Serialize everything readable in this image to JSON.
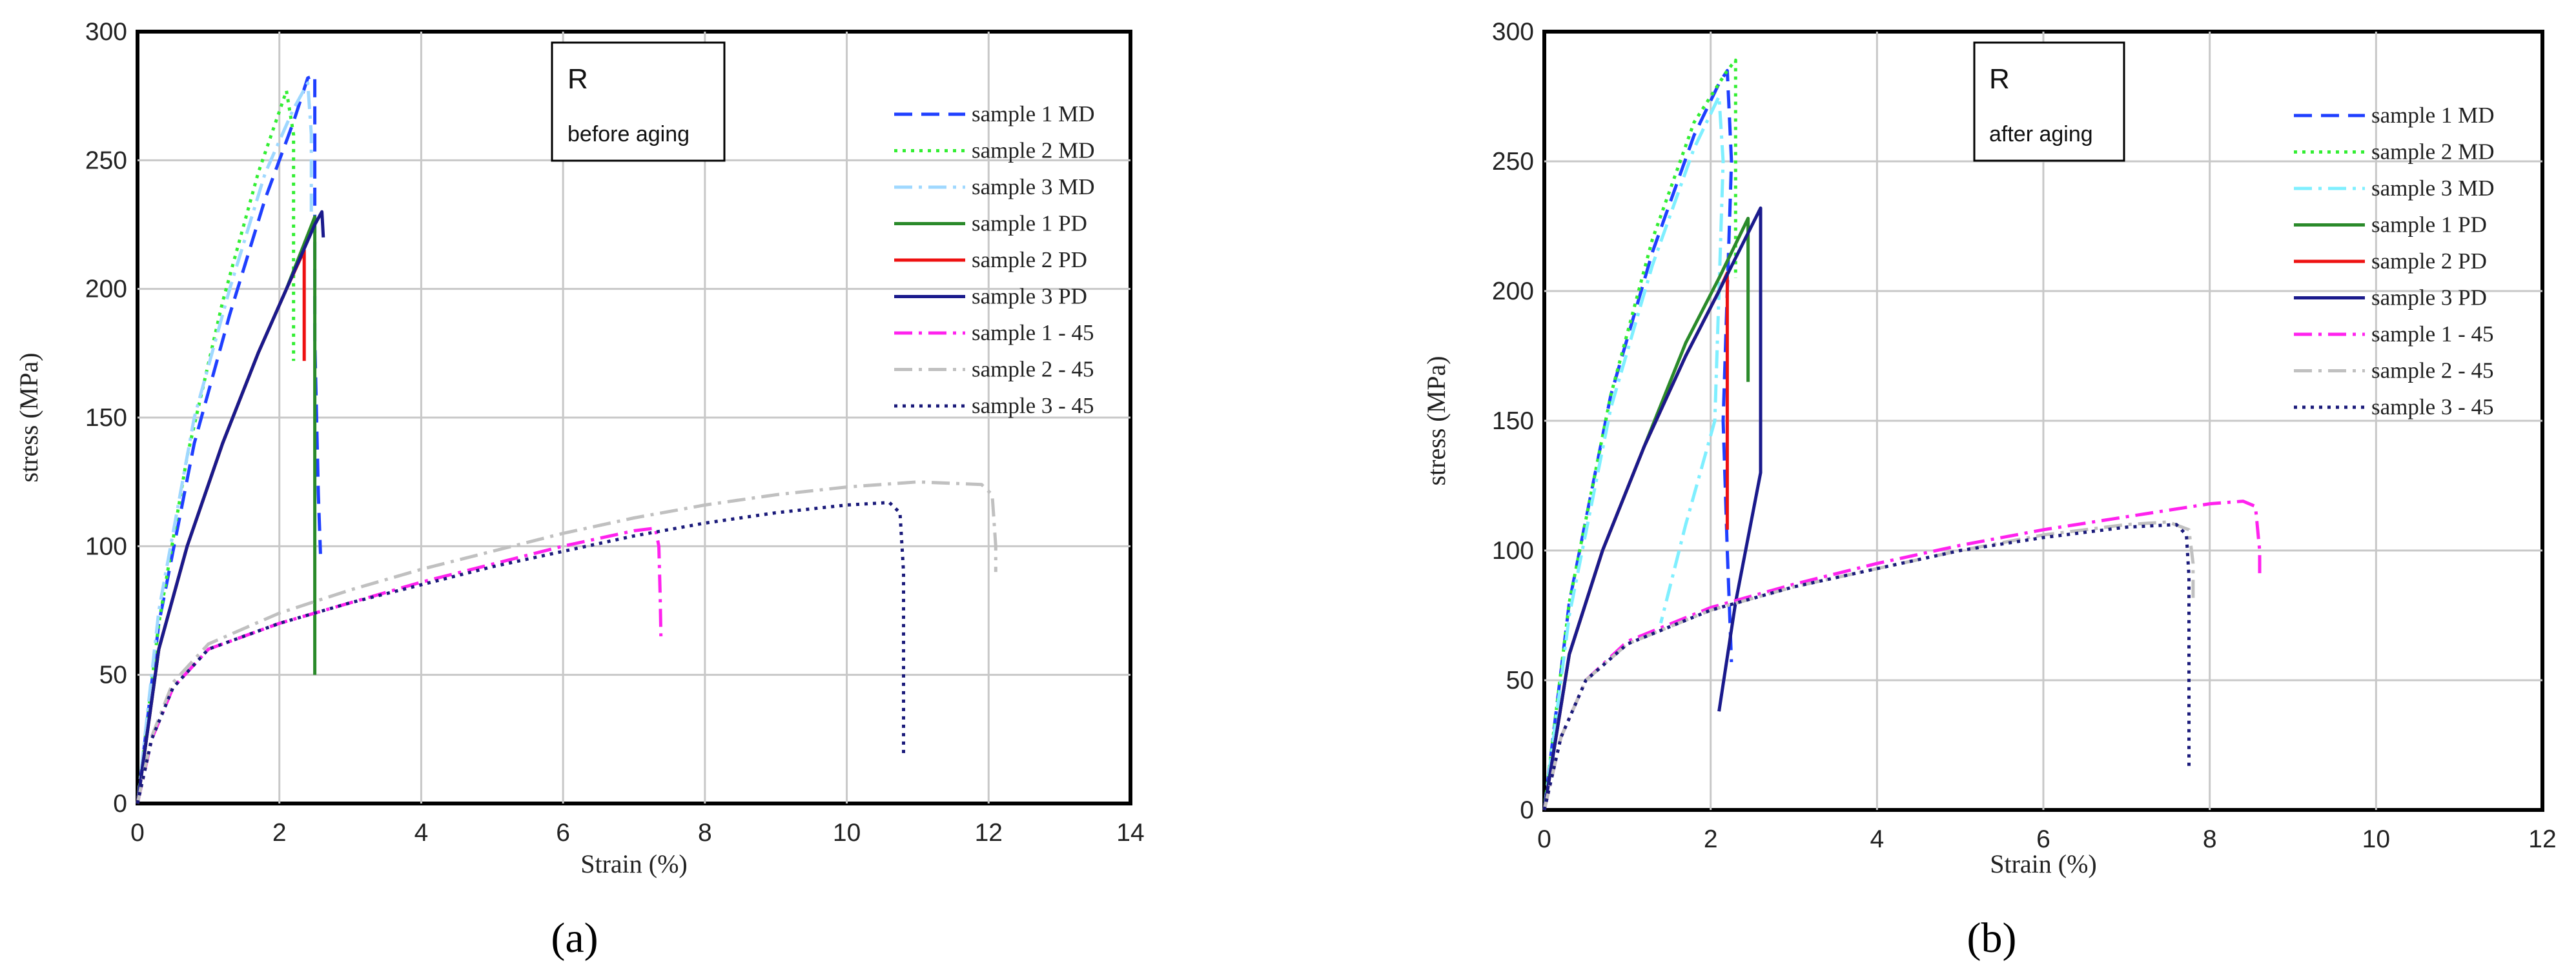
{
  "chart_data": [
    {
      "type": "line",
      "panel_label": "(a)",
      "annotation": {
        "line1": "R",
        "line2": "before aging"
      },
      "xlabel": "Strain (%)",
      "ylabel": "stress (MPa)",
      "xlim": [
        0,
        14
      ],
      "ylim": [
        0,
        300
      ],
      "xticks": [
        "0",
        "2",
        "4",
        "6",
        "8",
        "10",
        "12",
        "14"
      ],
      "yticks": [
        "0",
        "50",
        "100",
        "150",
        "200",
        "250",
        "300"
      ],
      "legend_position": "top-right",
      "series": [
        {
          "name": "sample 1 MD",
          "color": "#1f3fff",
          "dash": "dashed",
          "points": [
            [
              0,
              0
            ],
            [
              0.3,
              70
            ],
            [
              0.8,
              140
            ],
            [
              1.3,
              190
            ],
            [
              1.8,
              235
            ],
            [
              2.2,
              265
            ],
            [
              2.4,
              282
            ],
            [
              2.5,
              283
            ],
            [
              2.5,
              250
            ],
            [
              2.5,
              180
            ],
            [
              2.55,
              120
            ],
            [
              2.58,
              97
            ]
          ]
        },
        {
          "name": "sample 2 MD",
          "color": "#33ee33",
          "dash": "dotted",
          "points": [
            [
              0,
              0
            ],
            [
              0.3,
              70
            ],
            [
              0.7,
              135
            ],
            [
              1.2,
              195
            ],
            [
              1.7,
              245
            ],
            [
              2.1,
              277
            ],
            [
              2.2,
              260
            ],
            [
              2.2,
              210
            ],
            [
              2.2,
              172
            ]
          ]
        },
        {
          "name": "sample 3 MD",
          "color": "#9fd8ff",
          "dash": "dashdot",
          "points": [
            [
              0,
              0
            ],
            [
              0.3,
              75
            ],
            [
              0.8,
              150
            ],
            [
              1.3,
              200
            ],
            [
              1.8,
              245
            ],
            [
              2.2,
              270
            ],
            [
              2.4,
              280
            ],
            [
              2.45,
              260
            ],
            [
              2.45,
              230
            ]
          ]
        },
        {
          "name": "sample 1 PD",
          "color": "#2a8a2a",
          "dash": "solid",
          "points": [
            [
              0,
              0
            ],
            [
              0.3,
              60
            ],
            [
              0.7,
              100
            ],
            [
              1.2,
              140
            ],
            [
              1.7,
              175
            ],
            [
              2.1,
              200
            ],
            [
              2.5,
              228
            ],
            [
              2.5,
              200
            ],
            [
              2.5,
              150
            ],
            [
              2.5,
              100
            ],
            [
              2.5,
              50
            ]
          ]
        },
        {
          "name": "sample 2 PD",
          "color": "#ee1111",
          "dash": "solid",
          "points": [
            [
              0,
              0
            ],
            [
              0.3,
              60
            ],
            [
              0.7,
              100
            ],
            [
              1.2,
              140
            ],
            [
              1.7,
              175
            ],
            [
              2.1,
              200
            ],
            [
              2.35,
              215
            ],
            [
              2.35,
              190
            ],
            [
              2.35,
              172
            ]
          ]
        },
        {
          "name": "sample 3 PD",
          "color": "#1a1a8c",
          "dash": "solid",
          "points": [
            [
              0,
              0
            ],
            [
              0.3,
              60
            ],
            [
              0.7,
              100
            ],
            [
              1.2,
              140
            ],
            [
              1.7,
              175
            ],
            [
              2.1,
              200
            ],
            [
              2.5,
              225
            ],
            [
              2.6,
              230
            ],
            [
              2.62,
              220
            ]
          ]
        },
        {
          "name": "sample 1 - 45",
          "color": "#ff22ee",
          "dash": "dashdot",
          "points": [
            [
              0,
              0
            ],
            [
              0.2,
              25
            ],
            [
              0.5,
              45
            ],
            [
              1,
              60
            ],
            [
              2,
              70
            ],
            [
              3,
              78
            ],
            [
              4,
              86
            ],
            [
              5,
              93
            ],
            [
              6,
              100
            ],
            [
              7,
              106
            ],
            [
              7.3,
              107
            ],
            [
              7.35,
              100
            ],
            [
              7.37,
              80
            ],
            [
              7.38,
              65
            ]
          ]
        },
        {
          "name": "sample 2 - 45",
          "color": "#c0c0c0",
          "dash": "dashdot",
          "points": [
            [
              0,
              0
            ],
            [
              0.2,
              26
            ],
            [
              0.5,
              47
            ],
            [
              1,
              62
            ],
            [
              2,
              74
            ],
            [
              3,
              83
            ],
            [
              4,
              91
            ],
            [
              5,
              98
            ],
            [
              6,
              105
            ],
            [
              7,
              111
            ],
            [
              8,
              116
            ],
            [
              9,
              120
            ],
            [
              10,
              123
            ],
            [
              11,
              125
            ],
            [
              11.9,
              124
            ],
            [
              12.05,
              120
            ],
            [
              12.1,
              100
            ],
            [
              12.1,
              90
            ]
          ]
        },
        {
          "name": "sample 3 - 45",
          "color": "#1a1a7a",
          "dash": "dotted",
          "points": [
            [
              0,
              0
            ],
            [
              0.2,
              25
            ],
            [
              0.5,
              45
            ],
            [
              1,
              60
            ],
            [
              2,
              70
            ],
            [
              3,
              78
            ],
            [
              4,
              85
            ],
            [
              5,
              92
            ],
            [
              6,
              98
            ],
            [
              7,
              104
            ],
            [
              8,
              109
            ],
            [
              9,
              113
            ],
            [
              10,
              116
            ],
            [
              10.6,
              117
            ],
            [
              10.75,
              113
            ],
            [
              10.8,
              90
            ],
            [
              10.8,
              50
            ],
            [
              10.8,
              18
            ]
          ]
        }
      ]
    },
    {
      "type": "line",
      "panel_label": "(b)",
      "annotation": {
        "line1": "R",
        "line2": "after aging"
      },
      "xlabel": "Strain (%)",
      "ylabel": "stress (MPa)",
      "xlim": [
        0,
        12
      ],
      "ylim": [
        0,
        300
      ],
      "xticks": [
        "0",
        "2",
        "4",
        "6",
        "8",
        "10",
        "12"
      ],
      "yticks": [
        "0",
        "50",
        "100",
        "150",
        "200",
        "250",
        "300"
      ],
      "legend_position": "top-right",
      "series": [
        {
          "name": "sample 1 MD",
          "color": "#1f3fff",
          "dash": "dashed",
          "points": [
            [
              0,
              0
            ],
            [
              0.3,
              80
            ],
            [
              0.8,
              160
            ],
            [
              1.3,
              215
            ],
            [
              1.8,
              260
            ],
            [
              2.1,
              280
            ],
            [
              2.2,
              285
            ],
            [
              2.25,
              250
            ],
            [
              2.2,
              200
            ],
            [
              2.15,
              150
            ],
            [
              2.2,
              100
            ],
            [
              2.25,
              57
            ]
          ]
        },
        {
          "name": "sample 2 MD",
          "color": "#33ee33",
          "dash": "dotted",
          "points": [
            [
              0,
              0
            ],
            [
              0.3,
              80
            ],
            [
              0.8,
              160
            ],
            [
              1.3,
              220
            ],
            [
              1.8,
              265
            ],
            [
              2.2,
              285
            ],
            [
              2.3,
              289
            ],
            [
              2.3,
              260
            ],
            [
              2.3,
              230
            ],
            [
              2.3,
              205
            ]
          ]
        },
        {
          "name": "sample 3 MD",
          "color": "#7fefff",
          "dash": "dashdot",
          "points": [
            [
              0,
              0
            ],
            [
              0.3,
              75
            ],
            [
              0.8,
              155
            ],
            [
              1.3,
              210
            ],
            [
              1.8,
              255
            ],
            [
              2.1,
              275
            ],
            [
              2.15,
              250
            ],
            [
              2.1,
              200
            ],
            [
              2.05,
              150
            ],
            [
              1.7,
              110
            ],
            [
              1.4,
              72
            ]
          ]
        },
        {
          "name": "sample 1 PD",
          "color": "#2a8a2a",
          "dash": "solid",
          "points": [
            [
              0,
              0
            ],
            [
              0.3,
              60
            ],
            [
              0.7,
              100
            ],
            [
              1.2,
              140
            ],
            [
              1.7,
              180
            ],
            [
              2.1,
              205
            ],
            [
              2.45,
              228
            ],
            [
              2.45,
              200
            ],
            [
              2.45,
              165
            ]
          ]
        },
        {
          "name": "sample 2 PD",
          "color": "#ee1111",
          "dash": "solid",
          "points": [
            [
              0,
              0
            ],
            [
              0.3,
              60
            ],
            [
              0.7,
              100
            ],
            [
              1.2,
              140
            ],
            [
              1.7,
              175
            ],
            [
              2.1,
              200
            ],
            [
              2.2,
              207
            ],
            [
              2.2,
              180
            ],
            [
              2.2,
              150
            ],
            [
              2.2,
              108
            ]
          ]
        },
        {
          "name": "sample 3 PD",
          "color": "#1a1a8c",
          "dash": "solid",
          "points": [
            [
              0,
              0
            ],
            [
              0.3,
              60
            ],
            [
              0.7,
              100
            ],
            [
              1.2,
              140
            ],
            [
              1.7,
              175
            ],
            [
              2.1,
              200
            ],
            [
              2.6,
              232
            ],
            [
              2.6,
              200
            ],
            [
              2.6,
              160
            ],
            [
              2.6,
              130
            ],
            [
              2.3,
              80
            ],
            [
              2.1,
              38
            ]
          ]
        },
        {
          "name": "sample 1 - 45",
          "color": "#ff22ee",
          "dash": "dashdot",
          "points": [
            [
              0,
              0
            ],
            [
              0.2,
              28
            ],
            [
              0.5,
              50
            ],
            [
              1,
              65
            ],
            [
              2,
              78
            ],
            [
              3,
              87
            ],
            [
              4,
              95
            ],
            [
              5,
              102
            ],
            [
              6,
              108
            ],
            [
              7,
              113
            ],
            [
              8,
              118
            ],
            [
              8.4,
              119
            ],
            [
              8.55,
              117
            ],
            [
              8.6,
              100
            ],
            [
              8.6,
              90
            ]
          ]
        },
        {
          "name": "sample 2 - 45",
          "color": "#c0c0c0",
          "dash": "dashdot",
          "points": [
            [
              0,
              0
            ],
            [
              0.2,
              28
            ],
            [
              0.5,
              50
            ],
            [
              1,
              64
            ],
            [
              2,
              77
            ],
            [
              3,
              86
            ],
            [
              4,
              93
            ],
            [
              5,
              100
            ],
            [
              6,
              106
            ],
            [
              7,
              110
            ],
            [
              7.5,
              111
            ],
            [
              7.75,
              108
            ],
            [
              7.8,
              95
            ],
            [
              7.8,
              80
            ]
          ]
        },
        {
          "name": "sample 3 - 45",
          "color": "#1a1a7a",
          "dash": "dotted",
          "points": [
            [
              0,
              0
            ],
            [
              0.2,
              28
            ],
            [
              0.5,
              50
            ],
            [
              1,
              64
            ],
            [
              2,
              77
            ],
            [
              3,
              86
            ],
            [
              4,
              93
            ],
            [
              5,
              100
            ],
            [
              6,
              105
            ],
            [
              7,
              109
            ],
            [
              7.6,
              110
            ],
            [
              7.72,
              106
            ],
            [
              7.75,
              90
            ],
            [
              7.75,
              50
            ],
            [
              7.75,
              15
            ]
          ]
        }
      ]
    }
  ]
}
